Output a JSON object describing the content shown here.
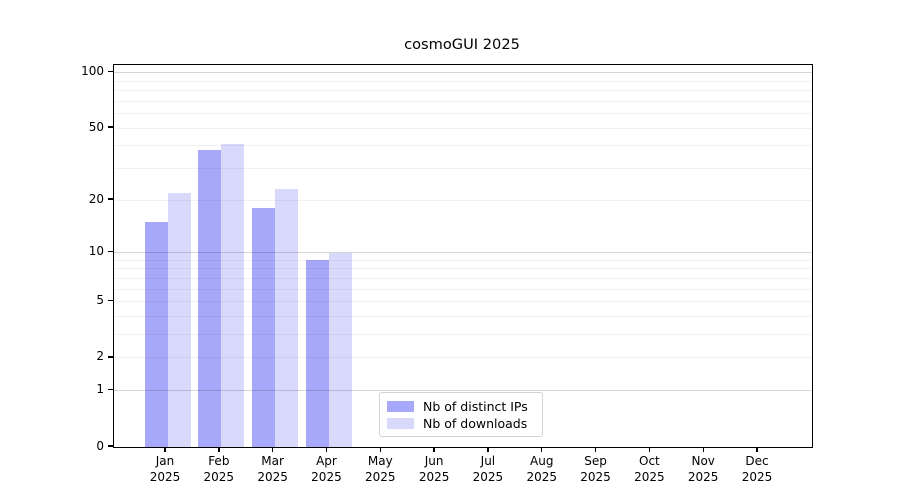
{
  "chart_data": {
    "type": "bar",
    "title": "cosmoGUI 2025",
    "categories": [
      "Jan",
      "Feb",
      "Mar",
      "Apr",
      "May",
      "Jun",
      "Jul",
      "Aug",
      "Sep",
      "Oct",
      "Nov",
      "Dec"
    ],
    "year_label": "2025",
    "series": [
      {
        "name": "Nb of distinct IPs",
        "color": "#a8a8fa",
        "values": [
          15,
          38,
          18,
          9,
          0,
          0,
          0,
          0,
          0,
          0,
          0,
          0
        ]
      },
      {
        "name": "Nb of downloads",
        "color": "#d9d9fb",
        "values": [
          22,
          41,
          23,
          10,
          0,
          0,
          0,
          0,
          0,
          0,
          0,
          0
        ]
      }
    ],
    "xlabel": "",
    "ylabel": "",
    "yscale": "log1p",
    "yticks": [
      100,
      50,
      20,
      10,
      5,
      2,
      1,
      0
    ],
    "ylim": [
      0,
      110
    ],
    "grid": true,
    "legend_position": "lower center"
  }
}
